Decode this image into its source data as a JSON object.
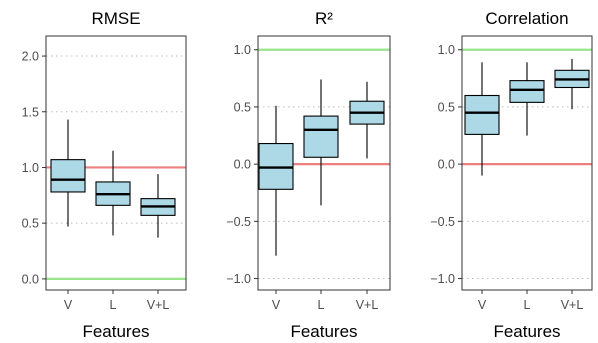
{
  "chart_data": [
    {
      "type": "box",
      "title": "RMSE",
      "xlabel": "Features",
      "ylabel": "",
      "categories": [
        "V",
        "L",
        "V+L"
      ],
      "ylim": [
        -0.1,
        2.18
      ],
      "yticks": [
        0.0,
        0.5,
        1.0,
        1.5,
        2.0
      ],
      "ytick_labels": [
        "0.0",
        "0.5",
        "1.0",
        "1.5",
        "2.0"
      ],
      "grid": "dotted horizontal",
      "boxes": [
        {
          "category": "V",
          "min": 0.47,
          "q1": 0.78,
          "median": 0.89,
          "q3": 1.07,
          "max": 1.43
        },
        {
          "category": "L",
          "min": 0.39,
          "q1": 0.66,
          "median": 0.76,
          "q3": 0.87,
          "max": 1.15
        },
        {
          "category": "V+L",
          "min": 0.37,
          "q1": 0.57,
          "median": 0.65,
          "q3": 0.72,
          "max": 0.94
        }
      ],
      "reference_lines": [
        {
          "y": 1.0,
          "color": "#ee7f7f"
        },
        {
          "y": 0.0,
          "color": "#98e58c"
        }
      ]
    },
    {
      "type": "box",
      "title": "R²",
      "xlabel": "Features",
      "ylabel": "",
      "categories": [
        "V",
        "L",
        "V+L"
      ],
      "ylim": [
        -1.1,
        1.12
      ],
      "yticks": [
        -1.0,
        -0.5,
        0.0,
        0.5,
        1.0
      ],
      "ytick_labels": [
        "−1.0",
        "−0.5",
        "0.0",
        "0.5",
        "1.0"
      ],
      "grid": "dotted horizontal",
      "boxes": [
        {
          "category": "V",
          "min": -0.8,
          "q1": -0.22,
          "median": -0.03,
          "q3": 0.18,
          "max": 0.51
        },
        {
          "category": "L",
          "min": -0.36,
          "q1": 0.06,
          "median": 0.3,
          "q3": 0.42,
          "max": 0.74
        },
        {
          "category": "V+L",
          "min": 0.05,
          "q1": 0.35,
          "median": 0.45,
          "q3": 0.55,
          "max": 0.72
        }
      ],
      "reference_lines": [
        {
          "y": 0.0,
          "color": "#ee7f7f"
        },
        {
          "y": 1.0,
          "color": "#98e58c"
        }
      ]
    },
    {
      "type": "box",
      "title": "Correlation",
      "xlabel": "Features",
      "ylabel": "",
      "categories": [
        "V",
        "L",
        "V+L"
      ],
      "ylim": [
        -1.1,
        1.12
      ],
      "yticks": [
        -1.0,
        -0.5,
        0.0,
        0.5,
        1.0
      ],
      "ytick_labels": [
        "−1.0",
        "−0.5",
        "0.0",
        "0.5",
        "1.0"
      ],
      "grid": "dotted horizontal",
      "boxes": [
        {
          "category": "V",
          "min": -0.1,
          "q1": 0.26,
          "median": 0.45,
          "q3": 0.6,
          "max": 0.89
        },
        {
          "category": "L",
          "min": 0.25,
          "q1": 0.54,
          "median": 0.65,
          "q3": 0.73,
          "max": 0.89
        },
        {
          "category": "V+L",
          "min": 0.48,
          "q1": 0.67,
          "median": 0.74,
          "q3": 0.82,
          "max": 0.92
        }
      ],
      "reference_lines": [
        {
          "y": 0.0,
          "color": "#ee7f7f"
        },
        {
          "y": 1.0,
          "color": "#98e58c"
        }
      ]
    }
  ],
  "colors": {
    "box_fill": "#add8e6",
    "box_stroke": "#000000",
    "grid": "#bdbdbd",
    "axis": "#333333"
  }
}
